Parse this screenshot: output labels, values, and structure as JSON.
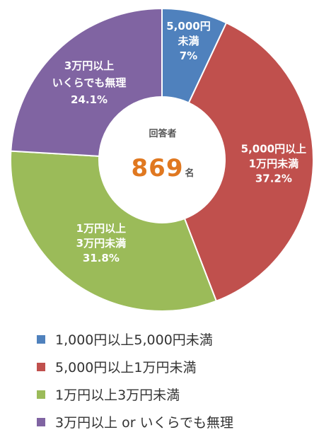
{
  "chart_data": {
    "type": "pie",
    "title": "",
    "center": {
      "title": "回答者",
      "value": "869",
      "unit": "名"
    },
    "slices": [
      {
        "legend": "1,000円以上5,000円未満",
        "label_lines": [
          "5,000円",
          "未満",
          "7%"
        ],
        "value": 7.0,
        "color": "#4f81bd"
      },
      {
        "legend": "5,000円以上1万円未満",
        "label_lines": [
          "5,000円以上",
          "1万円未満",
          "37.2%"
        ],
        "value": 37.2,
        "color": "#c0504d"
      },
      {
        "legend": "1万円以上3万円未満",
        "label_lines": [
          "1万円以上",
          "3万円未満",
          "31.8%"
        ],
        "value": 31.8,
        "color": "#9bbb59"
      },
      {
        "legend": "3万円以上 or いくらでも無理",
        "label_lines": [
          "3万円以上",
          "いくらでも無理",
          "24.1%"
        ],
        "value": 24.1,
        "color": "#8064a2"
      }
    ],
    "legend_position": "bottom-left"
  }
}
